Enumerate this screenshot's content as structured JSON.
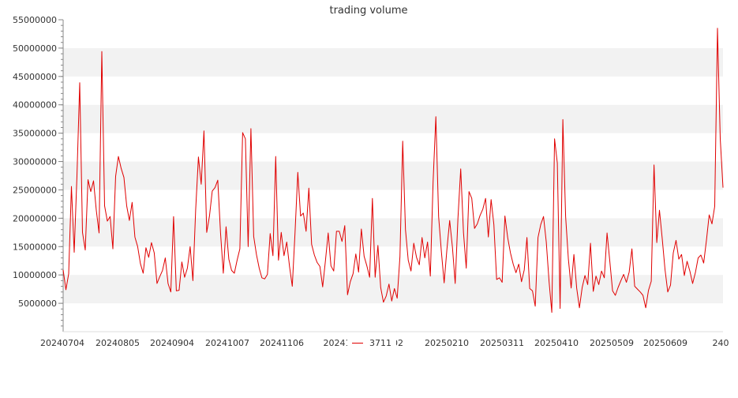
{
  "chart_data": {
    "type": "line",
    "title": "trading volume",
    "xlabel": "",
    "ylabel": "",
    "ylim": [
      0,
      55000000
    ],
    "yticks": [
      5000000,
      10000000,
      15000000,
      20000000,
      25000000,
      30000000,
      35000000,
      40000000,
      45000000,
      50000000,
      55000000
    ],
    "xtick_labels": [
      "20240704",
      "20240805",
      "20240904",
      "20241007",
      "20241106",
      "20241",
      "0102",
      "20250210",
      "20250311",
      "20250410",
      "20250509",
      "20250609",
      "240"
    ],
    "grid": "horizontal alternating bands",
    "legend": {
      "position": "bottom-center",
      "label": "3711"
    },
    "colors": {
      "line": "#e00000",
      "band": "#f2f2f2",
      "axis": "#888888"
    },
    "series": [
      {
        "name": "3711",
        "values": [
          10900000,
          7400000,
          10200000,
          25600000,
          14000000,
          27500000,
          43900000,
          17500000,
          14400000,
          26800000,
          24700000,
          26600000,
          21400000,
          17400000,
          49400000,
          22200000,
          19500000,
          20300000,
          14600000,
          27400000,
          30900000,
          28800000,
          27200000,
          22200000,
          19600000,
          22800000,
          16700000,
          15000000,
          12000000,
          10300000,
          14800000,
          13100000,
          15700000,
          13900000,
          8500000,
          9700000,
          10800000,
          13000000,
          8500000,
          7000000,
          20300000,
          7200000,
          7300000,
          12300000,
          9600000,
          11200000,
          15000000,
          9000000,
          21500000,
          30800000,
          26000000,
          35400000,
          17500000,
          20400000,
          24800000,
          25400000,
          26700000,
          17400000,
          10300000,
          18500000,
          12800000,
          10800000,
          10300000,
          12600000,
          14600000,
          35100000,
          34000000,
          15000000,
          35800000,
          16800000,
          13600000,
          11200000,
          9500000,
          9300000,
          10100000,
          17300000,
          13400000,
          30900000,
          12600000,
          17500000,
          13400000,
          15800000,
          11500000,
          8000000,
          17500000,
          28100000,
          20400000,
          20900000,
          17700000,
          25300000,
          15400000,
          13500000,
          12200000,
          11500000,
          7900000,
          12500000,
          17400000,
          11600000,
          10700000,
          17700000,
          17700000,
          15900000,
          18700000,
          6500000,
          8800000,
          10200000,
          13700000,
          10500000,
          18100000,
          13300000,
          11600000,
          9600000,
          23500000,
          9600000,
          15200000,
          7800000,
          5200000,
          6300000,
          8400000,
          5400000,
          7600000,
          5900000,
          13200000,
          33600000,
          18000000,
          12600000,
          10700000,
          15600000,
          13100000,
          11800000,
          16600000,
          13000000,
          15800000,
          9800000,
          26400000,
          37900000,
          20300000,
          14100000,
          8600000,
          14500000,
          19600000,
          14900000,
          8500000,
          20000000,
          28700000,
          17500000,
          11200000,
          24700000,
          23500000,
          18200000,
          19000000,
          20500000,
          21600000,
          23500000,
          16700000,
          23300000,
          18900000,
          9200000,
          9500000,
          8700000,
          20400000,
          16600000,
          13900000,
          11900000,
          10400000,
          11900000,
          8800000,
          10900000,
          16600000,
          7600000,
          7200000,
          4500000,
          16600000,
          18900000,
          20300000,
          15800000,
          8900000,
          3400000,
          34000000,
          29700000,
          4100000,
          37400000,
          20300000,
          12800000,
          7700000,
          13600000,
          7700000,
          4200000,
          7800000,
          9900000,
          8300000,
          15600000,
          7100000,
          9800000,
          8300000,
          10700000,
          9500000,
          17400000,
          12400000,
          7200000,
          6400000,
          7800000,
          9000000,
          10100000,
          8700000,
          10500000,
          14600000,
          8000000,
          7500000,
          7000000,
          6400000,
          4200000,
          7300000,
          8900000,
          29400000,
          15700000,
          21400000,
          16400000,
          11000000,
          7000000,
          8200000,
          13900000,
          16100000,
          12800000,
          13600000,
          9900000,
          12400000,
          10700000,
          8500000,
          10400000,
          13000000,
          13500000,
          12100000,
          16100000,
          20600000,
          19000000,
          22100000,
          53500000,
          34000000,
          25400000
        ]
      }
    ]
  }
}
